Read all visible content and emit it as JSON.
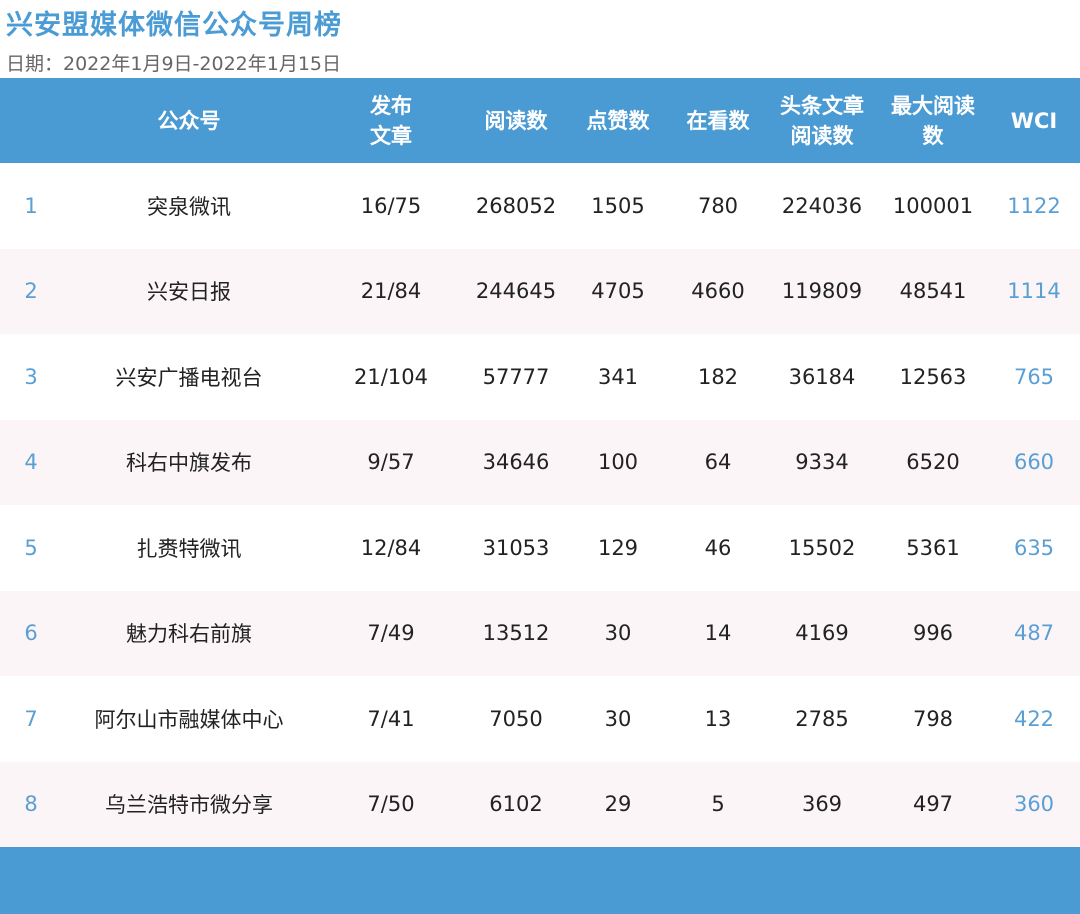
{
  "title": "兴安盟媒体微信公众号周榜",
  "date_range": "日期：2022年1月9日-2022年1月15日",
  "headers": {
    "account": "公众号",
    "published_line1": "发布",
    "published_line2": "文章",
    "reads": "阅读数",
    "likes": "点赞数",
    "watching": "在看数",
    "headline_reads_line1": "头条文章",
    "headline_reads_line2": "阅读数",
    "max_reads_line1": "最大阅读",
    "max_reads_line2": "数",
    "wci": "WCI"
  },
  "rows": [
    {
      "rank": "1",
      "account": "突泉微讯",
      "published": "16/75",
      "reads": "268052",
      "likes": "1505",
      "watching": "780",
      "headline_reads": "224036",
      "max_reads": "100001",
      "wci": "1122"
    },
    {
      "rank": "2",
      "account": "兴安日报",
      "published": "21/84",
      "reads": "244645",
      "likes": "4705",
      "watching": "4660",
      "headline_reads": "119809",
      "max_reads": "48541",
      "wci": "1114"
    },
    {
      "rank": "3",
      "account": "兴安广播电视台",
      "published": "21/104",
      "reads": "57777",
      "likes": "341",
      "watching": "182",
      "headline_reads": "36184",
      "max_reads": "12563",
      "wci": "765"
    },
    {
      "rank": "4",
      "account": "科右中旗发布",
      "published": "9/57",
      "reads": "34646",
      "likes": "100",
      "watching": "64",
      "headline_reads": "9334",
      "max_reads": "6520",
      "wci": "660"
    },
    {
      "rank": "5",
      "account": "扎赉特微讯",
      "published": "12/84",
      "reads": "31053",
      "likes": "129",
      "watching": "46",
      "headline_reads": "15502",
      "max_reads": "5361",
      "wci": "635"
    },
    {
      "rank": "6",
      "account": "魅力科右前旗",
      "published": "7/49",
      "reads": "13512",
      "likes": "30",
      "watching": "14",
      "headline_reads": "4169",
      "max_reads": "996",
      "wci": "487"
    },
    {
      "rank": "7",
      "account": "阿尔山市融媒体中心",
      "published": "7/41",
      "reads": "7050",
      "likes": "30",
      "watching": "13",
      "headline_reads": "2785",
      "max_reads": "798",
      "wci": "422"
    },
    {
      "rank": "8",
      "account": "乌兰浩特市微分享",
      "published": "7/50",
      "reads": "6102",
      "likes": "29",
      "watching": "5",
      "headline_reads": "369",
      "max_reads": "497",
      "wci": "360"
    }
  ],
  "colors": {
    "accent": "#4a9ad3",
    "rank_text": "#5a9fd4",
    "stripe": "#fbf5f8"
  }
}
